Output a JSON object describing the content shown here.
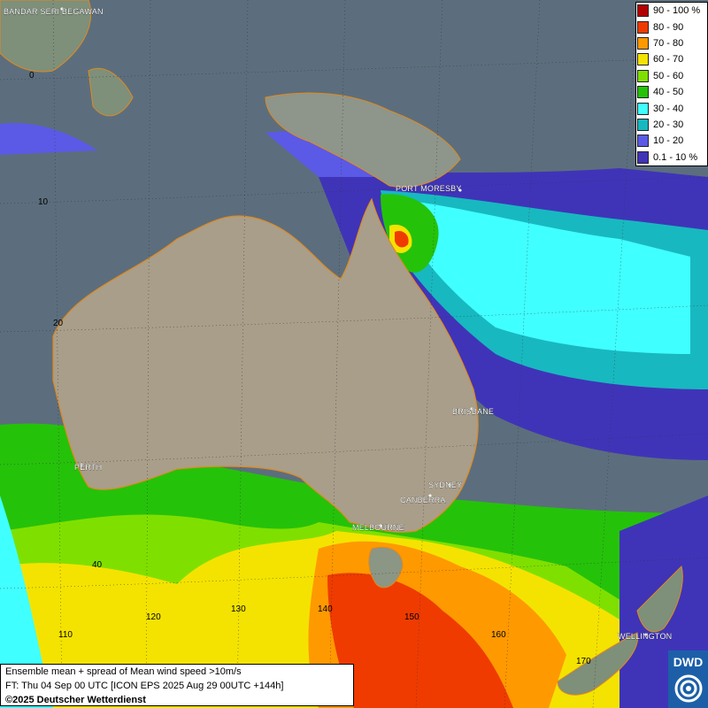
{
  "legend": {
    "items": [
      {
        "label": "90 - 100 %",
        "color": "#b30000"
      },
      {
        "label": "80 - 90",
        "color": "#ef3b00"
      },
      {
        "label": "70 - 80",
        "color": "#ff9900"
      },
      {
        "label": "60 - 70",
        "color": "#f4e300"
      },
      {
        "label": "50 - 60",
        "color": "#7fe000"
      },
      {
        "label": "40 - 50",
        "color": "#25c20a"
      },
      {
        "label": "30 - 40",
        "color": "#40ffff"
      },
      {
        "label": "20 - 30",
        "color": "#18b8c0"
      },
      {
        "label": "10 - 20",
        "color": "#5a5ae6"
      },
      {
        "label": "0.1 - 10 %",
        "color": "#3f34b8"
      }
    ]
  },
  "caption": {
    "line1": "Ensemble mean + spread of Mean wind speed >10m/s",
    "line2": "FT: Thu 04 Sep 00 UTC [ICON EPS 2025 Aug 29 00UTC +144h]",
    "line3": "©2025 Deutscher Wetterdienst"
  },
  "logo": {
    "text": "DWD"
  },
  "places": {
    "bandar": "BANDAR SERI BEGAWAN",
    "port_moresby": "PORT MORESBY",
    "brisbane": "BRISBANE",
    "perth": "PERTH",
    "sydney": "SYDNEY",
    "canberra": "CANBERRA",
    "melbourne": "MELBOURNE",
    "wellington": "WELLINGTON"
  },
  "grid_labels": {
    "lat0": "0",
    "lat10": "10",
    "lat20": "20",
    "lat40": "40",
    "lon110": "110",
    "lon120": "120",
    "lon130": "130",
    "lon140": "140",
    "lon150": "150",
    "lon160": "160",
    "lon170": "170"
  }
}
